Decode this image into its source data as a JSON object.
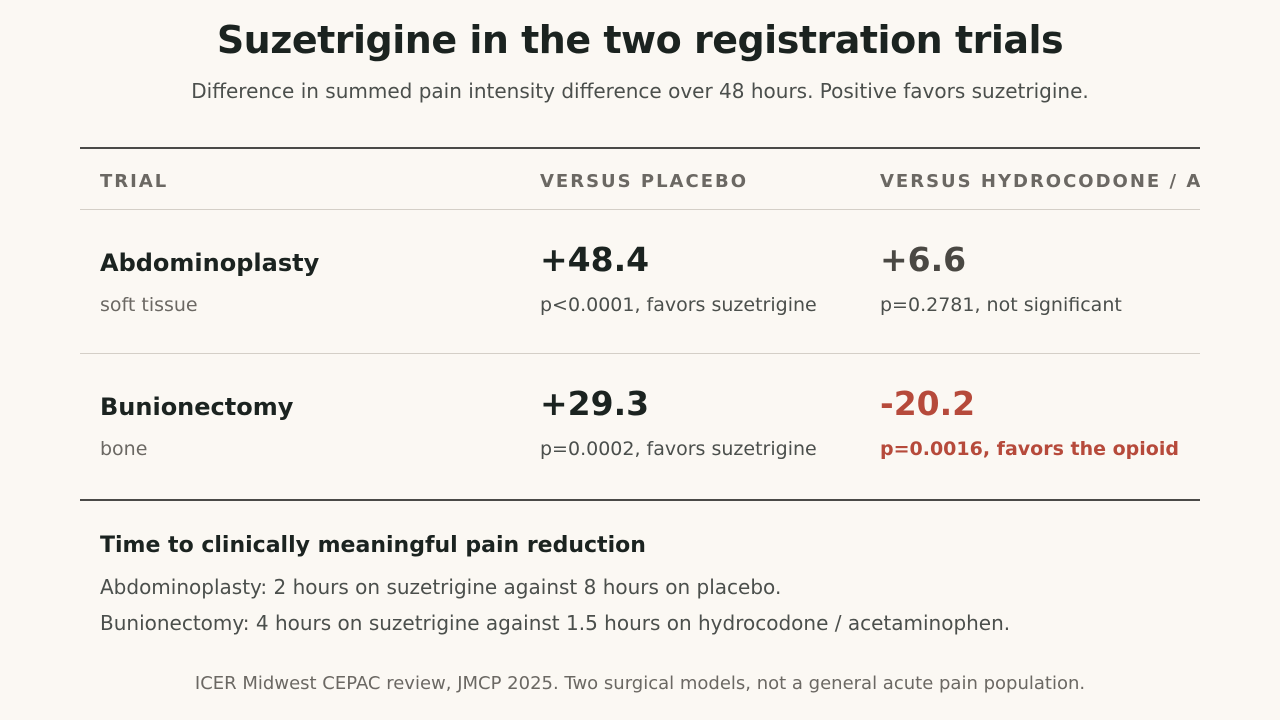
{
  "title": "Suzetrigine in the two registration trials",
  "subtitle": "Difference in summed pain intensity difference over 48 hours. Positive favors suzetrigine.",
  "table": {
    "headers": {
      "trial": "TRIAL",
      "placebo": "VERSUS PLACEBO",
      "opioid": "VERSUS HYDROCODONE / ACETAMINOPHEN"
    },
    "rows": [
      {
        "name": "Abdominoplasty",
        "model": "soft tissue",
        "placebo_value": "+48.4",
        "placebo_note": "p<0.0001, favors suzetrigine",
        "opioid_value": "+6.6",
        "opioid_note": "p=0.2781, not significant"
      },
      {
        "name": "Bunionectomy",
        "model": "bone",
        "placebo_value": "+29.3",
        "placebo_note": "p=0.0002, favors suzetrigine",
        "opioid_value": "-20.2",
        "opioid_note": "p=0.0016, favors the opioid"
      }
    ]
  },
  "time_to_relief": {
    "heading": "Time to clinically meaningful pain reduction",
    "lines": [
      "Abdominoplasty: 2 hours on suzetrigine against 8 hours on placebo.",
      "Bunionectomy: 4 hours on suzetrigine against 1.5 hours on hydrocodone / acetaminophen."
    ]
  },
  "footer": "ICER Midwest CEPAC review, JMCP 2025. Two surgical models, not a general acute pain population.",
  "colors": {
    "background": "#fbf8f3",
    "unfavorable": "#b64a3b",
    "rule": "#4a4a47"
  }
}
